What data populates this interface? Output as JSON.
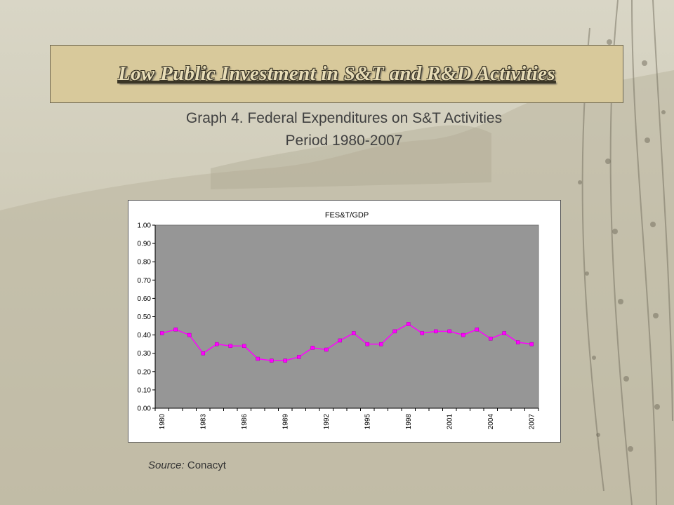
{
  "slide": {
    "title": "Low Public Investment  in S&T and R&D Activities",
    "subtitle_line1": "Graph 4. Federal Expenditures on S&T Activities",
    "subtitle_line2": "Period 1980-2007",
    "source_label": "Source:",
    "source_value": " Conacyt"
  },
  "colors": {
    "plot_background": "#969696",
    "marker": "#ff00ff",
    "line": "#ff00ff",
    "title_box": "#d8c99b"
  },
  "chart_data": {
    "type": "line",
    "title": "FES&T/GDP",
    "xlabel": "",
    "ylabel": "",
    "x": [
      1980,
      1981,
      1982,
      1983,
      1984,
      1985,
      1986,
      1987,
      1988,
      1989,
      1990,
      1991,
      1992,
      1993,
      1994,
      1995,
      1996,
      1997,
      1998,
      1999,
      2000,
      2001,
      2002,
      2003,
      2004,
      2005,
      2006,
      2007
    ],
    "x_tick_labels": [
      "1980",
      "1983",
      "1986",
      "1989",
      "1992",
      "1995",
      "1998",
      "2001",
      "2004",
      "2007"
    ],
    "series": [
      {
        "name": "",
        "values": [
          0.41,
          0.43,
          0.4,
          0.3,
          0.35,
          0.34,
          0.34,
          0.27,
          0.26,
          0.26,
          0.28,
          0.33,
          0.32,
          0.37,
          0.41,
          0.35,
          0.35,
          0.42,
          0.46,
          0.41,
          0.42,
          0.42,
          0.4,
          0.43,
          0.38,
          0.41,
          0.36,
          0.35
        ]
      }
    ],
    "y_tick_labels": [
      "0.00",
      "0.10",
      "0.20",
      "0.30",
      "0.40",
      "0.50",
      "0.60",
      "0.70",
      "0.80",
      "0.90",
      "1.00"
    ],
    "ylim": [
      0,
      1
    ],
    "grid": false,
    "legend": "none"
  }
}
